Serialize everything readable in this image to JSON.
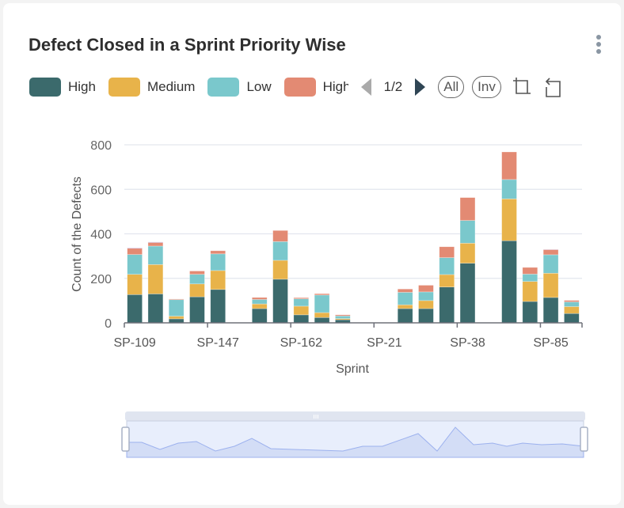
{
  "card": {
    "title": "Defect Closed in a Sprint Priority Wise",
    "menu_icon": "kebab-vertical-icon"
  },
  "legend": {
    "items": [
      {
        "label": "High",
        "color": "#3b6a6c"
      },
      {
        "label": "Medium",
        "color": "#e8b34a"
      },
      {
        "label": "Low",
        "color": "#7ac8cc"
      },
      {
        "label": "High",
        "color": "#e38a73"
      }
    ],
    "page": "1/2",
    "all_label": "All",
    "inv_label": "Inv",
    "prev_icon": "triangle-left-icon",
    "next_icon": "triangle-right-icon",
    "zoom_icon": "data-zoom-icon",
    "reset_icon": "zoom-reset-icon"
  },
  "chart_data": {
    "type": "bar",
    "stacked": true,
    "xlabel": "Sprint",
    "ylabel": "Count of the Defects",
    "ylim": [
      0,
      800
    ],
    "yticks": [
      "0",
      "200",
      "400",
      "600",
      "800"
    ],
    "categories": [
      "SP-109",
      "",
      "",
      "",
      "SP-147",
      "",
      "",
      "",
      "SP-162",
      "",
      "",
      "",
      "SP-21",
      "",
      "",
      "",
      "SP-38",
      "",
      "",
      "",
      "SP-85",
      ""
    ],
    "grid": true,
    "legend_position": "top-left",
    "series": [
      {
        "name": "High",
        "color": "#3b6a6c",
        "values": [
          127,
          130,
          18,
          117,
          150,
          0,
          64,
          196,
          36,
          24,
          14,
          0,
          0,
          64,
          64,
          161,
          268,
          0,
          369,
          96,
          114,
          42
        ]
      },
      {
        "name": "Medium",
        "color": "#e8b34a",
        "values": [
          91,
          132,
          12,
          58,
          85,
          0,
          21,
          85,
          39,
          22,
          5,
          0,
          0,
          17,
          36,
          56,
          90,
          0,
          188,
          90,
          109,
          31
        ]
      },
      {
        "name": "Low",
        "color": "#7ac8cc",
        "values": [
          89,
          83,
          74,
          43,
          75,
          0,
          20,
          84,
          33,
          79,
          12,
          0,
          0,
          56,
          39,
          76,
          102,
          0,
          87,
          33,
          83,
          21
        ]
      },
      {
        "name": "High",
        "color": "#e38a73",
        "values": [
          28,
          16,
          3,
          15,
          14,
          0,
          9,
          50,
          5,
          6,
          5,
          0,
          0,
          15,
          30,
          49,
          103,
          0,
          124,
          30,
          23,
          7
        ]
      },
      {
        "color": "#9a7fd1",
        "values": [
          2,
          2,
          0,
          0,
          0,
          0,
          0,
          0,
          0,
          0,
          0,
          0,
          0,
          0,
          0,
          0,
          0,
          0,
          0,
          0,
          1,
          0
        ]
      }
    ],
    "data_zoom": {
      "start_percent": 0,
      "end_percent": 100
    }
  }
}
